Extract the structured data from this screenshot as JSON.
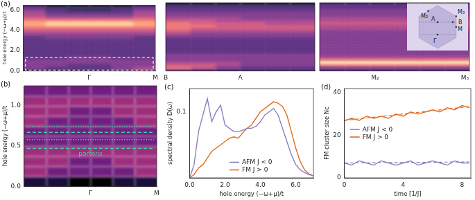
{
  "chart_data": [
    {
      "type": "heatmap",
      "title": "(a)",
      "y_label": "hole energy (−ω+μ)/t",
      "xlim": [
        0,
        1
      ],
      "xticks": [
        {
          "value": 0.5,
          "label": "Γ"
        },
        {
          "value": 1,
          "label": "M"
        }
      ],
      "ylim": [
        0,
        6.5
      ],
      "yticks": [
        {
          "value": 0,
          "label": "0.0"
        },
        {
          "value": 2,
          "label": "2.0"
        },
        {
          "value": 4,
          "label": "4.0"
        },
        {
          "value": 6,
          "label": "6.0"
        }
      ],
      "grid": false,
      "tick_labels": true,
      "zoom_ylim": [
        0.05,
        1.3
      ],
      "heatmap": {
        "zlim": [
          0,
          9
        ],
        "x": [
          0.0833,
          0.25,
          0.4167,
          0.5833,
          0.75,
          0.9167
        ],
        "y": [
          0.125,
          0.375,
          0.625,
          0.875,
          1.125,
          1.375,
          1.625,
          1.875,
          2.125,
          2.375,
          2.625,
          2.875,
          3.125,
          3.375,
          3.625,
          3.875,
          4.125,
          4.375,
          4.625,
          4.875,
          5.125,
          5.375,
          5.625,
          5.875,
          6.125,
          6.375
        ],
        "z": [
          [
            2,
            2,
            2,
            2,
            3,
            4
          ],
          [
            3,
            2,
            2,
            2,
            3,
            4
          ],
          [
            3,
            3,
            2,
            2,
            3,
            3
          ],
          [
            3,
            3,
            3,
            3,
            3,
            3
          ],
          [
            3,
            3,
            3,
            3,
            3,
            3
          ],
          [
            2,
            2,
            3,
            3,
            2,
            2
          ],
          [
            2,
            2,
            2,
            2,
            2,
            2
          ],
          [
            2,
            2,
            2,
            2,
            2,
            2
          ],
          [
            2,
            2,
            2,
            2,
            2,
            2
          ],
          [
            2,
            2,
            2,
            2,
            2,
            2
          ],
          [
            2,
            2,
            2,
            2,
            2,
            2
          ],
          [
            2,
            2,
            2,
            2,
            2,
            2
          ],
          [
            2,
            2,
            2,
            2,
            2,
            2
          ],
          [
            2,
            3,
            3,
            3,
            3,
            2
          ],
          [
            3,
            3,
            3,
            3,
            3,
            3
          ],
          [
            4,
            4,
            4,
            4,
            4,
            4
          ],
          [
            5,
            5,
            5,
            5,
            5,
            5
          ],
          [
            6,
            6,
            6,
            6,
            6,
            6
          ],
          [
            7,
            8,
            8,
            8,
            8,
            7
          ],
          [
            7,
            8,
            8,
            8,
            8,
            7
          ],
          [
            6,
            6,
            6,
            6,
            6,
            6
          ],
          [
            5,
            4,
            4,
            4,
            4,
            5
          ],
          [
            4,
            3,
            3,
            3,
            3,
            4
          ],
          [
            4,
            2,
            2,
            2,
            2,
            4
          ],
          [
            3,
            2,
            1,
            1,
            2,
            3
          ],
          [
            2,
            1,
            1,
            1,
            1,
            2
          ]
        ]
      }
    },
    {
      "type": "heatmap",
      "xlim": [
        0,
        1
      ],
      "xticks": [
        {
          "value": 0,
          "label": "B"
        },
        {
          "value": 0.5,
          "label": "A"
        }
      ],
      "ylim": [
        0,
        6.5
      ],
      "yticks": [
        0,
        2,
        4,
        6
      ],
      "grid": false,
      "tick_labels": "x",
      "heatmap": {
        "zlim": [
          0,
          9
        ],
        "x": [
          0.0833,
          0.25,
          0.4167,
          0.5833,
          0.75,
          0.9167
        ],
        "y": [
          0.125,
          0.375,
          0.625,
          0.875,
          1.125,
          1.375,
          1.625,
          1.875,
          2.125,
          2.375,
          2.625,
          2.875,
          3.125,
          3.375,
          3.625,
          3.875,
          4.125,
          4.375,
          4.625,
          4.875,
          5.125,
          5.375,
          5.625,
          5.875,
          6.125,
          6.375
        ],
        "z": [
          [
            3,
            2,
            2,
            2,
            2,
            2
          ],
          [
            6,
            5,
            3,
            2,
            2,
            2
          ],
          [
            5,
            5,
            4,
            3,
            3,
            3
          ],
          [
            4,
            4,
            4,
            3,
            3,
            3
          ],
          [
            3,
            3,
            3,
            3,
            3,
            3
          ],
          [
            3,
            3,
            3,
            3,
            3,
            3
          ],
          [
            3,
            3,
            3,
            3,
            3,
            3
          ],
          [
            2,
            2,
            2,
            2,
            2,
            2
          ],
          [
            2,
            2,
            2,
            2,
            2,
            2
          ],
          [
            2,
            2,
            2,
            2,
            2,
            2
          ],
          [
            2,
            2,
            2,
            2,
            2,
            2
          ],
          [
            2,
            2,
            2,
            2,
            2,
            2
          ],
          [
            2,
            2,
            2,
            2,
            2,
            2
          ],
          [
            3,
            3,
            3,
            3,
            3,
            3
          ],
          [
            4,
            3,
            3,
            3,
            3,
            3
          ],
          [
            5,
            4,
            4,
            4,
            4,
            4
          ],
          [
            6,
            5,
            5,
            5,
            5,
            5
          ],
          [
            6,
            6,
            5,
            5,
            5,
            5
          ],
          [
            6,
            5,
            5,
            5,
            4,
            4
          ],
          [
            5,
            5,
            4,
            4,
            4,
            4
          ],
          [
            4,
            4,
            4,
            3,
            3,
            3
          ],
          [
            3,
            3,
            3,
            3,
            3,
            3
          ],
          [
            3,
            3,
            3,
            3,
            3,
            3
          ],
          [
            2,
            2,
            2,
            2,
            2,
            2
          ],
          [
            2,
            2,
            2,
            2,
            2,
            2
          ],
          [
            1,
            1,
            1,
            1,
            1,
            1
          ]
        ]
      }
    },
    {
      "type": "heatmap",
      "xlim": [
        0,
        1
      ],
      "xticks": [
        {
          "value": 0.37,
          "label": "M₂"
        },
        {
          "value": 0.97,
          "label": "M₃"
        }
      ],
      "ylim": [
        0,
        6.5
      ],
      "yticks": [
        0,
        2,
        4,
        6
      ],
      "grid": false,
      "tick_labels": "x",
      "inset_labels": [
        "M₂",
        "M₃",
        "M",
        "B",
        "A",
        "Γ"
      ],
      "heatmap": {
        "zlim": [
          0,
          9
        ],
        "x": [
          0.0833,
          0.25,
          0.4167,
          0.5833,
          0.75,
          0.9167
        ],
        "y": [
          0.125,
          0.375,
          0.625,
          0.875,
          1.125,
          1.375,
          1.625,
          1.875,
          2.125,
          2.375,
          2.625,
          2.875,
          3.125,
          3.375,
          3.625,
          3.875,
          4.125,
          4.375,
          4.625,
          4.875,
          5.125,
          5.375,
          5.625,
          5.875,
          6.125,
          6.375
        ],
        "z": [
          [
            2,
            2,
            2,
            2,
            2,
            2
          ],
          [
            3,
            3,
            3,
            3,
            3,
            3
          ],
          [
            6,
            6,
            6,
            6,
            6,
            6
          ],
          [
            9,
            9,
            9,
            9,
            9,
            9
          ],
          [
            6,
            6,
            6,
            6,
            6,
            6
          ],
          [
            4,
            4,
            4,
            4,
            4,
            4
          ],
          [
            3,
            3,
            3,
            3,
            3,
            3
          ],
          [
            3,
            3,
            3,
            3,
            3,
            3
          ],
          [
            3,
            3,
            3,
            3,
            3,
            3
          ],
          [
            3,
            3,
            3,
            3,
            3,
            3
          ],
          [
            3,
            3,
            3,
            3,
            3,
            3
          ],
          [
            3,
            3,
            3,
            3,
            3,
            3
          ],
          [
            3,
            3,
            3,
            3,
            3,
            3
          ],
          [
            3,
            3,
            3,
            3,
            3,
            3
          ],
          [
            3,
            3,
            3,
            3,
            3,
            3
          ],
          [
            3,
            3,
            3,
            3,
            3,
            3
          ],
          [
            4,
            4,
            4,
            4,
            4,
            4
          ],
          [
            4,
            4,
            4,
            4,
            4,
            4
          ],
          [
            5,
            5,
            5,
            5,
            5,
            5
          ],
          [
            4,
            4,
            4,
            4,
            4,
            4
          ],
          [
            4,
            4,
            4,
            4,
            4,
            4
          ],
          [
            3,
            3,
            3,
            3,
            3,
            3
          ],
          [
            3,
            3,
            3,
            3,
            3,
            3
          ],
          [
            3,
            3,
            3,
            3,
            3,
            3
          ],
          [
            2,
            2,
            2,
            2,
            2,
            2
          ],
          [
            2,
            2,
            2,
            2,
            2,
            2
          ]
        ]
      }
    },
    {
      "type": "heatmap",
      "title": "(b)",
      "y_label": "hole energy (−ω+μ)/t",
      "xlim": [
        0,
        1
      ],
      "xticks": [
        {
          "value": 0.5,
          "label": "Γ"
        },
        {
          "value": 1,
          "label": "M"
        }
      ],
      "ylim": [
        0,
        1.25
      ],
      "yticks": [
        {
          "value": 0,
          "label": "0.0"
        },
        {
          "value": 0.5,
          "label": "0.5"
        },
        {
          "value": 1,
          "label": "1.0"
        }
      ],
      "grid": false,
      "tick_labels": true,
      "annotation": "partons",
      "levels": [
        {
          "value": 0.74,
          "line_style": "dotted",
          "color": "#3fd0a6"
        },
        {
          "value": 0.67,
          "line_style": "dashed",
          "color": "#3fd0a6"
        },
        {
          "value": 0.58,
          "line_style": "dotted",
          "color": "#3fd0a6"
        },
        {
          "value": 0.47,
          "line_style": "dashed",
          "color": "#3fd0a6"
        }
      ],
      "heatmap": {
        "zlim": [
          0,
          9
        ],
        "x": [
          0.0833,
          0.25,
          0.4167,
          0.5833,
          0.75,
          0.9167
        ],
        "y": [
          0.0625,
          0.1875,
          0.3125,
          0.4375,
          0.5625,
          0.6875,
          0.8125,
          0.9375,
          1.0625,
          1.1875
        ],
        "z": [
          [
            1,
            1,
            0,
            0,
            1,
            1
          ],
          [
            4,
            3,
            3,
            3,
            3,
            4
          ],
          [
            4,
            4,
            3,
            3,
            4,
            4
          ],
          [
            4,
            4,
            4,
            4,
            4,
            4
          ],
          [
            3,
            3,
            3,
            3,
            3,
            3
          ],
          [
            3,
            3,
            3,
            3,
            3,
            3
          ],
          [
            4,
            3,
            3,
            3,
            3,
            4
          ],
          [
            4,
            4,
            3,
            3,
            4,
            4
          ],
          [
            4,
            4,
            4,
            4,
            4,
            4
          ],
          [
            3,
            3,
            3,
            3,
            3,
            3
          ]
        ]
      }
    },
    {
      "type": "line",
      "title": "(c)",
      "x_label": "hole energy (−ω+μ)/t",
      "y_label": "spectral density D(ω)",
      "xlim": [
        0,
        7
      ],
      "xticks": [
        {
          "value": 0,
          "label": "0.0"
        },
        {
          "value": 2,
          "label": "2.0"
        },
        {
          "value": 4,
          "label": "4.0"
        },
        {
          "value": 6,
          "label": "6.0"
        }
      ],
      "ylim": [
        0,
        0.135
      ],
      "yticks": [
        0.1
      ],
      "grid": false,
      "legend": "lower center",
      "x": [
        0,
        0.25,
        0.5,
        0.75,
        1.0,
        1.25,
        1.5,
        1.75,
        2.0,
        2.25,
        2.5,
        2.75,
        3.0,
        3.25,
        3.5,
        3.75,
        4.0,
        4.25,
        4.5,
        4.75,
        5.0,
        5.25,
        5.5,
        5.75,
        6.0,
        6.25,
        6.5,
        6.75,
        7.0
      ],
      "series": [
        {
          "name": "AFM J < 0",
          "color": "#8a80c0",
          "line_style": "solid",
          "values": [
            0.0,
            0.02,
            0.07,
            0.095,
            0.12,
            0.085,
            0.1,
            0.11,
            0.08,
            0.075,
            0.07,
            0.07,
            0.072,
            0.075,
            0.075,
            0.078,
            0.085,
            0.095,
            0.1,
            0.105,
            0.095,
            0.075,
            0.055,
            0.035,
            0.02,
            0.012,
            0.008,
            0.005,
            0.003
          ]
        },
        {
          "name": "FM J > 0",
          "color": "#e36b1c",
          "line_style": "solid",
          "values": [
            0.0,
            0.005,
            0.015,
            0.02,
            0.03,
            0.04,
            0.045,
            0.05,
            0.055,
            0.06,
            0.062,
            0.06,
            0.068,
            0.075,
            0.08,
            0.09,
            0.1,
            0.105,
            0.11,
            0.115,
            0.113,
            0.108,
            0.095,
            0.07,
            0.045,
            0.025,
            0.012,
            0.006,
            0.003
          ]
        }
      ]
    },
    {
      "type": "line",
      "title": "(d)",
      "x_label": "time [1/J]",
      "y_label": "FM cluster size Nc",
      "xlim": [
        0,
        8.6
      ],
      "xticks": [
        0,
        4,
        8
      ],
      "ylim": [
        0,
        42
      ],
      "yticks": [
        0,
        20,
        40
      ],
      "grid": false,
      "legend": "center left",
      "x": [
        0,
        0.5,
        1,
        1.5,
        2,
        2.5,
        3,
        3.5,
        4,
        4.5,
        5,
        5.5,
        6,
        6.5,
        7,
        7.5,
        8,
        8.5
      ],
      "series": [
        {
          "name": "AFM J < 0",
          "color": "#8a80c0",
          "line_style": "solid",
          "values": [
            7,
            6,
            8,
            7,
            6,
            8,
            7,
            6,
            7,
            8,
            6,
            7,
            8,
            7,
            6,
            8,
            7,
            7
          ],
          "fit": [
            7,
            7.5
          ]
        },
        {
          "name": "FM J > 0",
          "color": "#e36b1c",
          "line_style": "solid",
          "values": [
            27,
            28,
            27,
            29,
            28,
            29,
            28,
            30,
            29,
            31,
            30,
            31,
            32,
            31,
            33,
            32,
            34,
            33
          ],
          "fit": [
            27,
            33.5
          ]
        }
      ]
    }
  ]
}
